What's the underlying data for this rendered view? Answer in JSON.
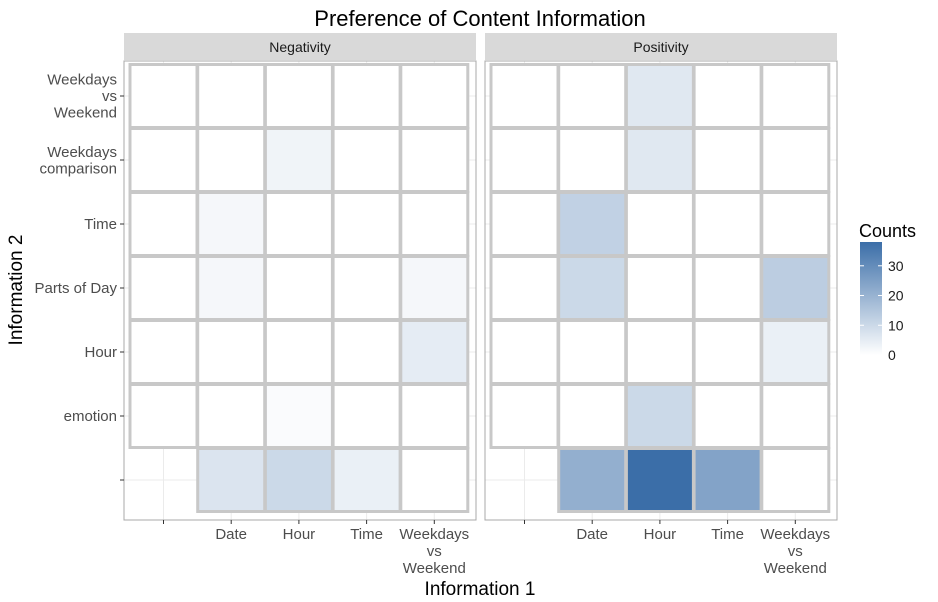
{
  "chart_data": {
    "type": "heatmap",
    "title": "Preference of Content Information",
    "xlabel": "Information 1",
    "ylabel": "Information 2",
    "x_categories": [
      "",
      "Date",
      "Hour",
      "Time",
      "Weekdays vs Weekend"
    ],
    "x_tick_lines": [
      [
        ""
      ],
      [
        "Date"
      ],
      [
        "Hour"
      ],
      [
        "Time"
      ],
      [
        "Weekdays",
        "vs",
        "Weekend"
      ]
    ],
    "y_categories": [
      "Weekdays vs Weekend",
      "Weekdays comparison",
      "Time",
      "Parts of Day",
      "Hour",
      "emotion",
      ""
    ],
    "y_tick_lines": [
      [
        "Weekdays",
        "vs",
        "Weekend"
      ],
      [
        "Weekdays",
        "comparison"
      ],
      [
        "Time"
      ],
      [
        "Parts of Day"
      ],
      [
        "Hour"
      ],
      [
        "emotion"
      ],
      [
        ""
      ]
    ],
    "facets": [
      {
        "name": "Negativity",
        "counts": [
          [
            0,
            0,
            0,
            0,
            0
          ],
          [
            0,
            0,
            3,
            0,
            0
          ],
          [
            0,
            2,
            0,
            0,
            0
          ],
          [
            0,
            2,
            0,
            0,
            2
          ],
          [
            0,
            0,
            0,
            0,
            5
          ],
          [
            0,
            0,
            1,
            0,
            0
          ],
          [
            null,
            7,
            10,
            4,
            0
          ]
        ]
      },
      {
        "name": "Positivity",
        "counts": [
          [
            0,
            0,
            6,
            0,
            0
          ],
          [
            0,
            0,
            6,
            0,
            0
          ],
          [
            0,
            12,
            0,
            0,
            0
          ],
          [
            0,
            10,
            0,
            0,
            13
          ],
          [
            0,
            0,
            0,
            0,
            4
          ],
          [
            0,
            0,
            10,
            0,
            0
          ],
          [
            null,
            21,
            38,
            24,
            0
          ]
        ]
      }
    ],
    "legend": {
      "title": "Counts",
      "ticks": [
        0,
        10,
        20,
        30
      ],
      "range": [
        0,
        38
      ],
      "low_color": "#ffffff",
      "high_color": "#3b6ea8",
      "position": "right"
    },
    "grid": true,
    "panel_strip_color": "#d9d9d9",
    "tile_border_color": "#c8c8c8"
  }
}
